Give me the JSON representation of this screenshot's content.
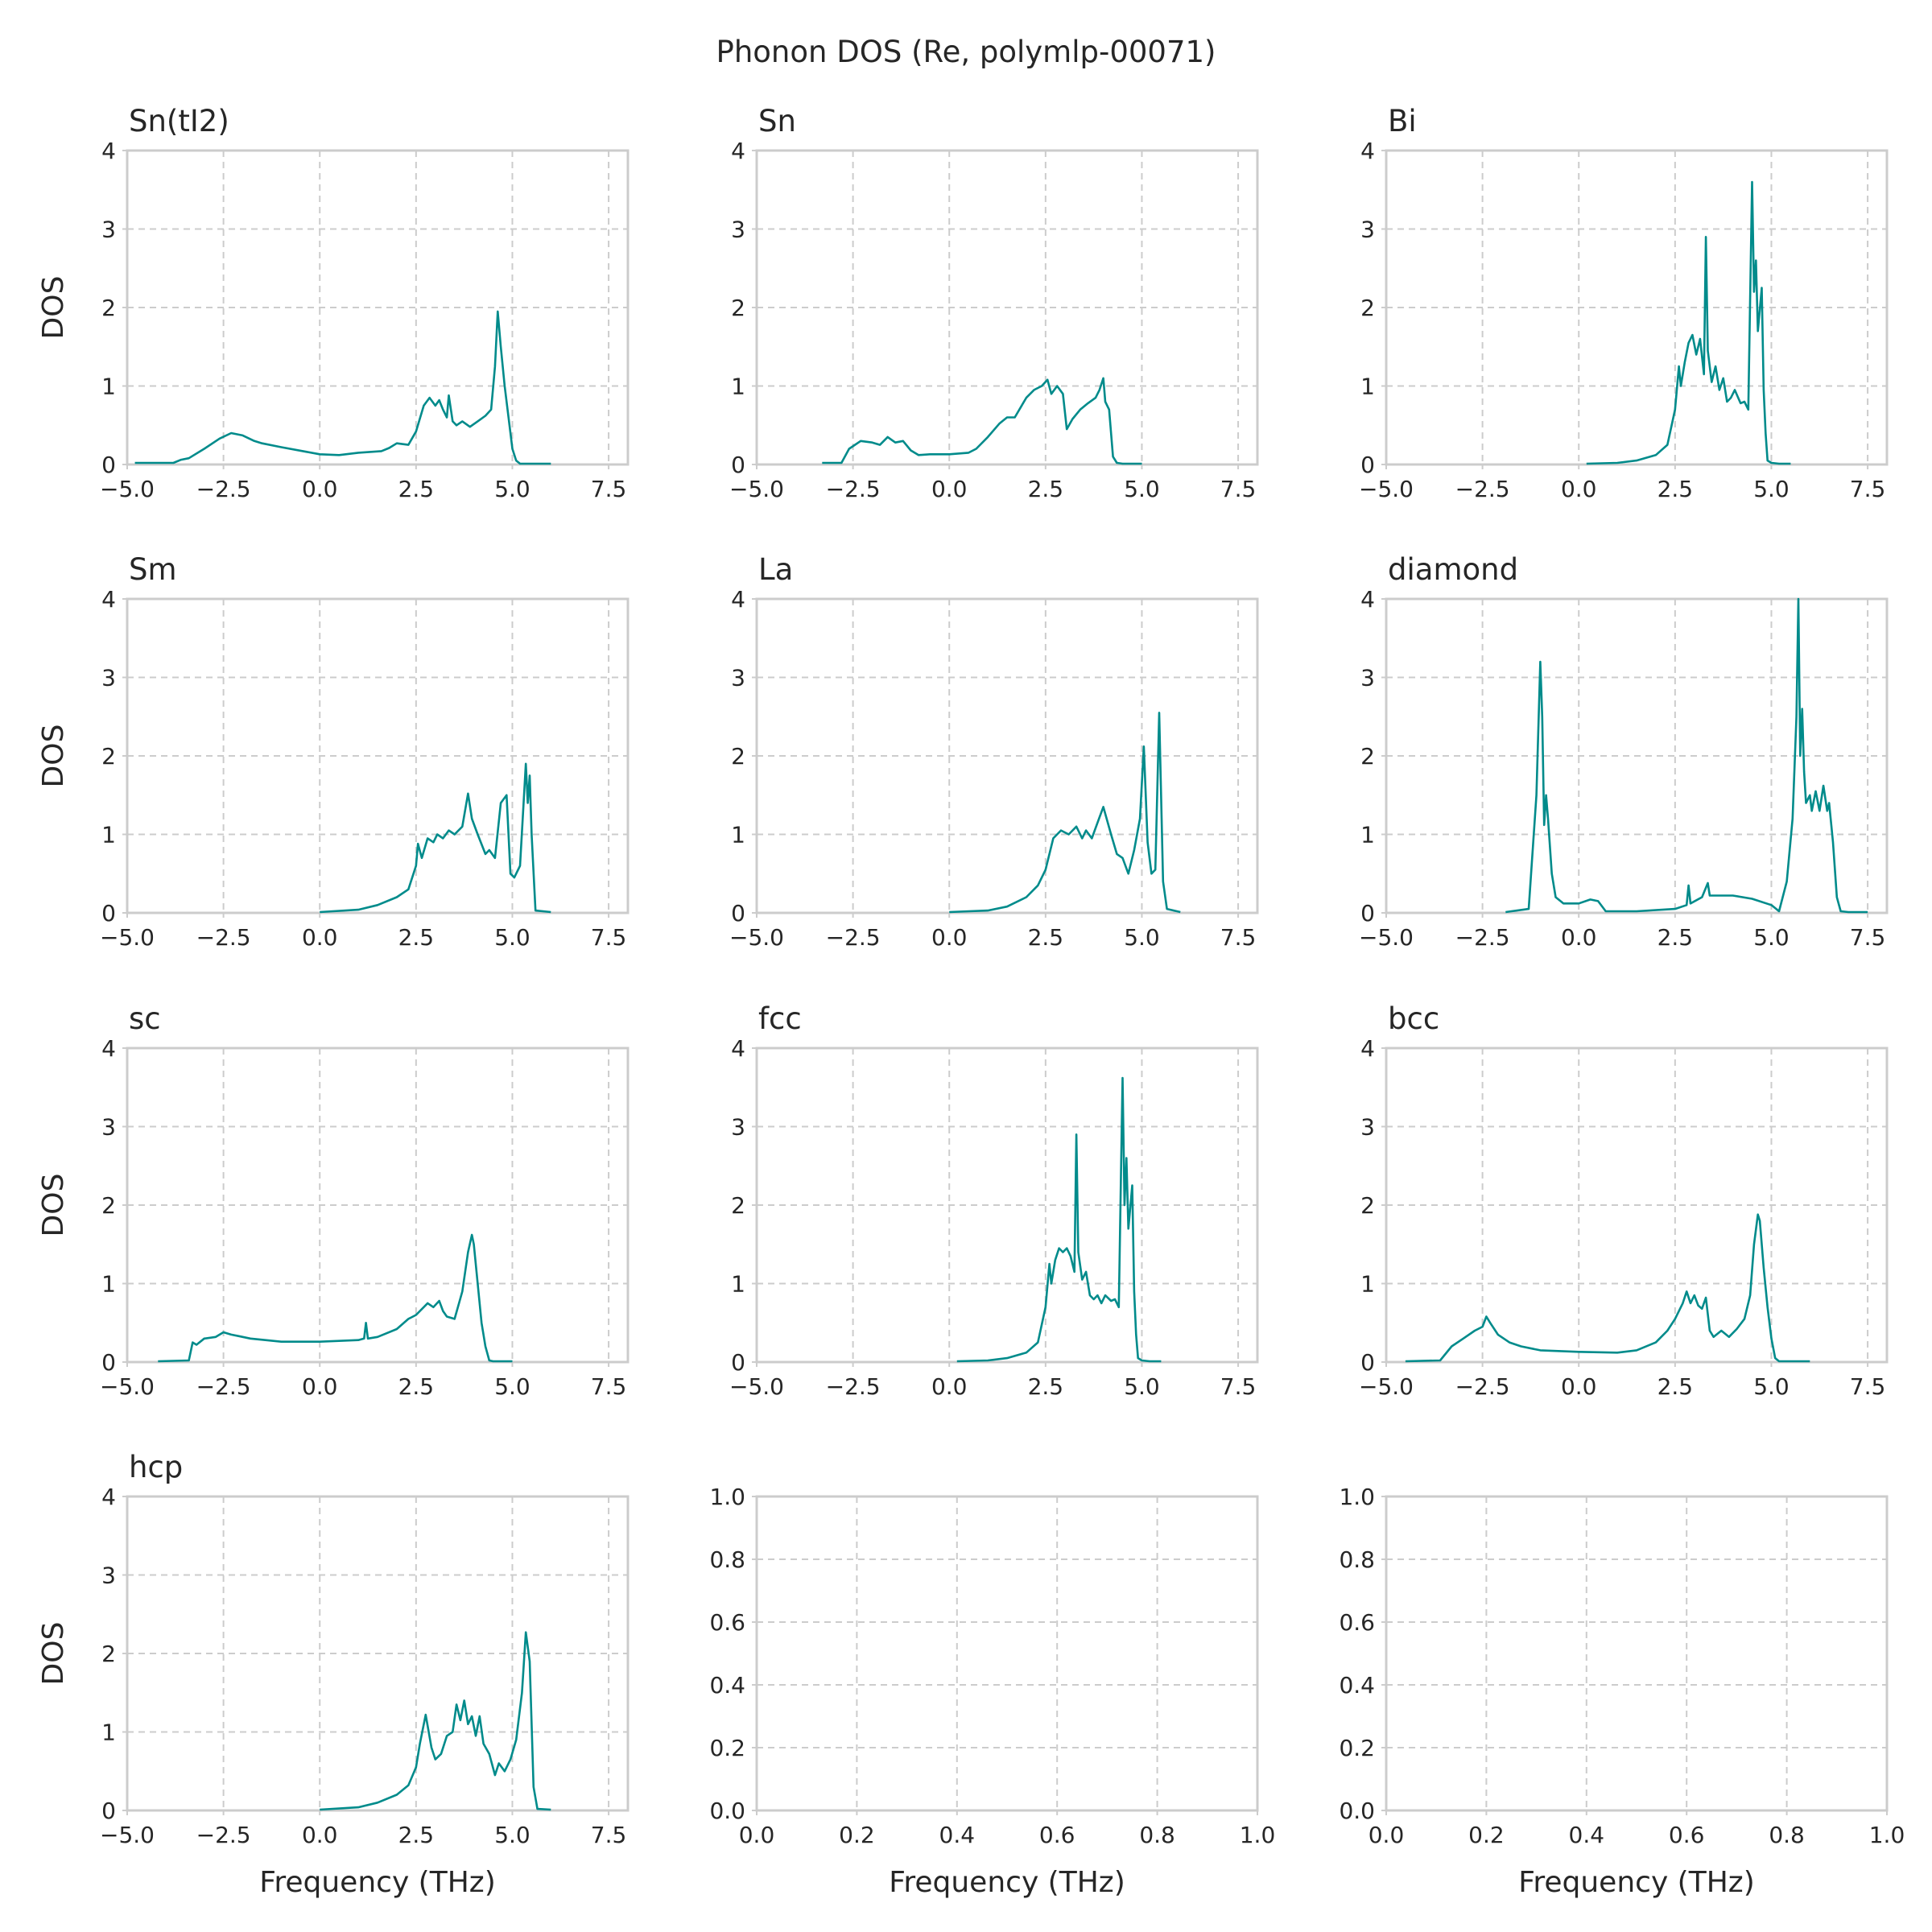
{
  "suptitle": "Phonon DOS (Re, polymlp-00071)",
  "style": {
    "line_color": "#008b8b",
    "grid_color": "#cccccc",
    "grid": "dashed"
  },
  "chart_data": [
    {
      "type": "line",
      "title": "Sn(tI2)",
      "xlabel": "",
      "ylabel": "DOS",
      "xlim": [
        -5,
        8
      ],
      "ylim": [
        0,
        4
      ],
      "xticks": [
        "−5.0",
        "−2.5",
        "0.0",
        "2.5",
        "5.0",
        "7.5"
      ],
      "yticks": [
        "0",
        "1",
        "2",
        "3",
        "4"
      ],
      "x": [
        -4.8,
        -3.8,
        -3.6,
        -3.4,
        -3.0,
        -2.6,
        -2.3,
        -2.0,
        -1.7,
        -1.5,
        -1.0,
        0,
        0.5,
        1.0,
        1.6,
        1.8,
        2.0,
        2.3,
        2.5,
        2.7,
        2.85,
        3.0,
        3.1,
        3.2,
        3.3,
        3.35,
        3.45,
        3.55,
        3.7,
        3.9,
        4.1,
        4.3,
        4.45,
        4.55,
        4.62,
        4.7,
        4.8,
        4.9,
        5.0,
        5.1,
        5.2,
        6.0
      ],
      "y": [
        0.02,
        0.02,
        0.06,
        0.08,
        0.2,
        0.33,
        0.4,
        0.37,
        0.3,
        0.27,
        0.22,
        0.13,
        0.12,
        0.15,
        0.17,
        0.21,
        0.27,
        0.25,
        0.42,
        0.75,
        0.85,
        0.75,
        0.82,
        0.7,
        0.6,
        0.88,
        0.55,
        0.5,
        0.55,
        0.48,
        0.55,
        0.62,
        0.7,
        1.25,
        1.95,
        1.5,
        1.0,
        0.6,
        0.2,
        0.05,
        0.01,
        0.01
      ]
    },
    {
      "type": "line",
      "title": "Sn",
      "xlabel": "",
      "ylabel": "",
      "xlim": [
        -5,
        8
      ],
      "ylim": [
        0,
        4
      ],
      "xticks": [
        "−5.0",
        "−2.5",
        "0.0",
        "2.5",
        "5.0",
        "7.5"
      ],
      "yticks": [
        "0",
        "1",
        "2",
        "3",
        "4"
      ],
      "x": [
        -3.3,
        -2.8,
        -2.6,
        -2.3,
        -2.0,
        -1.8,
        -1.6,
        -1.4,
        -1.2,
        -1.0,
        -0.8,
        -0.5,
        0,
        0.5,
        0.7,
        1.0,
        1.3,
        1.5,
        1.7,
        2.0,
        2.2,
        2.4,
        2.55,
        2.65,
        2.8,
        2.95,
        3.05,
        3.2,
        3.4,
        3.6,
        3.8,
        3.9,
        4.0,
        4.05,
        4.15,
        4.25,
        4.35,
        4.5,
        5.0
      ],
      "y": [
        0.02,
        0.02,
        0.2,
        0.3,
        0.28,
        0.25,
        0.35,
        0.28,
        0.3,
        0.18,
        0.12,
        0.13,
        0.13,
        0.15,
        0.2,
        0.35,
        0.52,
        0.6,
        0.6,
        0.85,
        0.95,
        1.0,
        1.08,
        0.9,
        1.0,
        0.9,
        0.45,
        0.58,
        0.7,
        0.78,
        0.85,
        0.95,
        1.1,
        0.8,
        0.7,
        0.1,
        0.02,
        0.01,
        0.01
      ]
    },
    {
      "type": "line",
      "title": "Bi",
      "xlabel": "",
      "ylabel": "",
      "xlim": [
        -5,
        8
      ],
      "ylim": [
        0,
        4
      ],
      "xticks": [
        "−5.0",
        "−2.5",
        "0.0",
        "2.5",
        "5.0",
        "7.5"
      ],
      "yticks": [
        "0",
        "1",
        "2",
        "3",
        "4"
      ],
      "x": [
        0.2,
        1.0,
        1.5,
        2.0,
        2.3,
        2.5,
        2.6,
        2.65,
        2.75,
        2.85,
        2.95,
        3.05,
        3.15,
        3.25,
        3.3,
        3.35,
        3.45,
        3.55,
        3.65,
        3.75,
        3.85,
        3.95,
        4.05,
        4.2,
        4.3,
        4.4,
        4.5,
        4.55,
        4.6,
        4.65,
        4.75,
        4.8,
        4.85,
        4.9,
        5.0,
        5.2,
        5.5
      ],
      "y": [
        0.01,
        0.02,
        0.05,
        0.12,
        0.25,
        0.7,
        1.25,
        1.0,
        1.3,
        1.55,
        1.65,
        1.4,
        1.6,
        1.15,
        2.9,
        1.45,
        1.05,
        1.25,
        0.95,
        1.1,
        0.8,
        0.85,
        0.95,
        0.78,
        0.8,
        0.7,
        3.6,
        2.2,
        2.6,
        1.7,
        2.25,
        0.95,
        0.4,
        0.05,
        0.02,
        0.01,
        0.01
      ]
    },
    {
      "type": "line",
      "title": "Sm",
      "xlabel": "",
      "ylabel": "DOS",
      "xlim": [
        -5,
        8
      ],
      "ylim": [
        0,
        4
      ],
      "xticks": [
        "−5.0",
        "−2.5",
        "0.0",
        "2.5",
        "5.0",
        "7.5"
      ],
      "yticks": [
        "0",
        "1",
        "2",
        "3",
        "4"
      ],
      "x": [
        0.0,
        1.0,
        1.5,
        2.0,
        2.3,
        2.5,
        2.55,
        2.65,
        2.8,
        2.95,
        3.05,
        3.2,
        3.35,
        3.5,
        3.7,
        3.85,
        3.95,
        4.1,
        4.3,
        4.4,
        4.55,
        4.7,
        4.85,
        4.95,
        5.05,
        5.2,
        5.35,
        5.4,
        5.45,
        5.5,
        5.6,
        6.0
      ],
      "y": [
        0.01,
        0.04,
        0.1,
        0.2,
        0.3,
        0.6,
        0.88,
        0.7,
        0.95,
        0.9,
        1.0,
        0.95,
        1.05,
        1.0,
        1.1,
        1.52,
        1.2,
        1.0,
        0.75,
        0.8,
        0.7,
        1.4,
        1.5,
        0.5,
        0.45,
        0.6,
        1.9,
        1.4,
        1.75,
        1.0,
        0.03,
        0.01
      ]
    },
    {
      "type": "line",
      "title": "La",
      "xlabel": "",
      "ylabel": "",
      "xlim": [
        -5,
        8
      ],
      "ylim": [
        0,
        4
      ],
      "xticks": [
        "−5.0",
        "−2.5",
        "0.0",
        "2.5",
        "5.0",
        "7.5"
      ],
      "yticks": [
        "0",
        "1",
        "2",
        "3",
        "4"
      ],
      "x": [
        0.0,
        1.0,
        1.5,
        2.0,
        2.3,
        2.5,
        2.7,
        2.9,
        3.1,
        3.3,
        3.45,
        3.55,
        3.7,
        3.85,
        4.0,
        4.2,
        4.35,
        4.5,
        4.65,
        4.8,
        4.95,
        5.05,
        5.15,
        5.25,
        5.35,
        5.45,
        5.55,
        5.65,
        6.0
      ],
      "y": [
        0.01,
        0.03,
        0.08,
        0.2,
        0.35,
        0.55,
        0.95,
        1.05,
        1.0,
        1.1,
        0.95,
        1.05,
        0.95,
        1.15,
        1.35,
        1.0,
        0.75,
        0.7,
        0.5,
        0.8,
        1.2,
        2.12,
        0.9,
        0.5,
        0.55,
        2.55,
        0.4,
        0.05,
        0.01
      ]
    },
    {
      "type": "line",
      "title": "diamond",
      "xlabel": "",
      "ylabel": "",
      "xlim": [
        -5,
        8
      ],
      "ylim": [
        0,
        4
      ],
      "xticks": [
        "−5.0",
        "−2.5",
        "0.0",
        "2.5",
        "5.0",
        "7.5"
      ],
      "yticks": [
        "0",
        "1",
        "2",
        "3",
        "4"
      ],
      "x": [
        -1.9,
        -1.3,
        -1.1,
        -1.0,
        -0.95,
        -0.9,
        -0.85,
        -0.8,
        -0.7,
        -0.6,
        -0.4,
        0,
        0.3,
        0.5,
        0.7,
        0.8,
        1.5,
        2.5,
        2.8,
        2.85,
        2.9,
        3.2,
        3.35,
        3.4,
        3.5,
        4.0,
        4.5,
        5.0,
        5.2,
        5.4,
        5.55,
        5.65,
        5.7,
        5.75,
        5.8,
        5.85,
        5.9,
        6.0,
        6.05,
        6.15,
        6.25,
        6.35,
        6.45,
        6.5,
        6.6,
        6.7,
        6.8,
        7.0,
        7.5
      ],
      "y": [
        0.01,
        0.05,
        1.5,
        3.2,
        2.5,
        1.12,
        1.5,
        1.2,
        0.5,
        0.2,
        0.12,
        0.12,
        0.17,
        0.15,
        0.02,
        0.02,
        0.02,
        0.05,
        0.1,
        0.35,
        0.12,
        0.2,
        0.38,
        0.22,
        0.22,
        0.22,
        0.18,
        0.1,
        0.02,
        0.4,
        1.2,
        2.5,
        4.0,
        2.0,
        2.6,
        1.8,
        1.4,
        1.5,
        1.3,
        1.55,
        1.3,
        1.62,
        1.3,
        1.4,
        0.9,
        0.2,
        0.02,
        0.01,
        0.01
      ]
    },
    {
      "type": "line",
      "title": "sc",
      "xlabel": "",
      "ylabel": "DOS",
      "xlim": [
        -5,
        8
      ],
      "ylim": [
        0,
        4
      ],
      "xticks": [
        "−5.0",
        "−2.5",
        "0.0",
        "2.5",
        "5.0",
        "7.5"
      ],
      "yticks": [
        "0",
        "1",
        "2",
        "3",
        "4"
      ],
      "x": [
        -4.2,
        -3.4,
        -3.3,
        -3.2,
        -3.0,
        -2.7,
        -2.5,
        -2.3,
        -2.1,
        -1.8,
        -1.0,
        0,
        1.0,
        1.15,
        1.2,
        1.25,
        1.5,
        2.0,
        2.3,
        2.5,
        2.8,
        2.95,
        3.1,
        3.2,
        3.3,
        3.5,
        3.7,
        3.85,
        3.95,
        4.0,
        4.1,
        4.2,
        4.3,
        4.4,
        4.5,
        5.0
      ],
      "y": [
        0.01,
        0.02,
        0.25,
        0.22,
        0.3,
        0.32,
        0.38,
        0.35,
        0.33,
        0.3,
        0.26,
        0.26,
        0.28,
        0.3,
        0.5,
        0.3,
        0.32,
        0.42,
        0.55,
        0.6,
        0.75,
        0.7,
        0.78,
        0.65,
        0.58,
        0.55,
        0.9,
        1.4,
        1.62,
        1.5,
        1.0,
        0.5,
        0.2,
        0.02,
        0.01,
        0.01
      ]
    },
    {
      "type": "line",
      "title": "fcc",
      "xlabel": "",
      "ylabel": "",
      "xlim": [
        -5,
        8
      ],
      "ylim": [
        0,
        4
      ],
      "xticks": [
        "−5.0",
        "−2.5",
        "0.0",
        "2.5",
        "5.0",
        "7.5"
      ],
      "yticks": [
        "0",
        "1",
        "2",
        "3",
        "4"
      ],
      "x": [
        0.2,
        1.0,
        1.5,
        2.0,
        2.3,
        2.5,
        2.6,
        2.65,
        2.75,
        2.85,
        2.95,
        3.05,
        3.15,
        3.25,
        3.3,
        3.35,
        3.45,
        3.55,
        3.65,
        3.75,
        3.85,
        3.95,
        4.05,
        4.2,
        4.3,
        4.4,
        4.5,
        4.55,
        4.6,
        4.65,
        4.75,
        4.8,
        4.85,
        4.9,
        5.0,
        5.2,
        5.5
      ],
      "y": [
        0.01,
        0.02,
        0.05,
        0.12,
        0.25,
        0.7,
        1.25,
        1.0,
        1.3,
        1.45,
        1.4,
        1.45,
        1.35,
        1.15,
        2.9,
        1.4,
        1.05,
        1.15,
        0.85,
        0.8,
        0.85,
        0.75,
        0.85,
        0.78,
        0.8,
        0.7,
        3.62,
        2.0,
        2.6,
        1.7,
        2.25,
        0.9,
        0.35,
        0.05,
        0.02,
        0.01,
        0.01
      ]
    },
    {
      "type": "line",
      "title": "bcc",
      "xlabel": "",
      "ylabel": "",
      "xlim": [
        -5,
        8
      ],
      "ylim": [
        0,
        4
      ],
      "xticks": [
        "−5.0",
        "−2.5",
        "0.0",
        "2.5",
        "5.0",
        "7.5"
      ],
      "yticks": [
        "0",
        "1",
        "2",
        "3",
        "4"
      ],
      "x": [
        -4.5,
        -3.6,
        -3.3,
        -3.0,
        -2.7,
        -2.5,
        -2.4,
        -2.3,
        -2.1,
        -1.8,
        -1.5,
        -1.0,
        0,
        1.0,
        1.5,
        2.0,
        2.3,
        2.5,
        2.7,
        2.8,
        2.9,
        3.0,
        3.1,
        3.2,
        3.3,
        3.4,
        3.5,
        3.7,
        3.9,
        4.1,
        4.3,
        4.45,
        4.55,
        4.65,
        4.7,
        4.8,
        4.9,
        5.0,
        5.1,
        5.2,
        6.0
      ],
      "y": [
        0.01,
        0.02,
        0.2,
        0.3,
        0.4,
        0.45,
        0.58,
        0.5,
        0.35,
        0.25,
        0.2,
        0.15,
        0.13,
        0.12,
        0.15,
        0.25,
        0.4,
        0.55,
        0.75,
        0.9,
        0.75,
        0.85,
        0.72,
        0.68,
        0.82,
        0.4,
        0.32,
        0.4,
        0.32,
        0.42,
        0.55,
        0.85,
        1.5,
        1.88,
        1.8,
        1.2,
        0.7,
        0.3,
        0.05,
        0.01,
        0.01
      ]
    },
    {
      "type": "line",
      "title": "hcp",
      "xlabel": "Frequency (THz)",
      "ylabel": "DOS",
      "xlim": [
        -5,
        8
      ],
      "ylim": [
        0,
        4
      ],
      "xticks": [
        "−5.0",
        "−2.5",
        "0.0",
        "2.5",
        "5.0",
        "7.5"
      ],
      "yticks": [
        "0",
        "1",
        "2",
        "3",
        "4"
      ],
      "x": [
        0.0,
        1.0,
        1.5,
        2.0,
        2.3,
        2.5,
        2.6,
        2.75,
        2.9,
        3.0,
        3.15,
        3.3,
        3.45,
        3.55,
        3.65,
        3.75,
        3.85,
        3.95,
        4.05,
        4.15,
        4.25,
        4.4,
        4.55,
        4.65,
        4.8,
        4.95,
        5.1,
        5.25,
        5.35,
        5.45,
        5.55,
        5.65,
        6.0
      ],
      "y": [
        0.01,
        0.04,
        0.1,
        0.2,
        0.32,
        0.55,
        0.85,
        1.22,
        0.8,
        0.65,
        0.72,
        0.95,
        1.0,
        1.35,
        1.15,
        1.4,
        1.1,
        1.2,
        0.95,
        1.2,
        0.85,
        0.72,
        0.45,
        0.6,
        0.5,
        0.65,
        0.9,
        1.5,
        2.27,
        1.9,
        0.3,
        0.02,
        0.01
      ]
    },
    {
      "type": "line",
      "title": "",
      "xlabel": "Frequency (THz)",
      "ylabel": "",
      "xlim": [
        0,
        1
      ],
      "ylim": [
        0,
        1
      ],
      "xticks": [
        "0.0",
        "0.2",
        "0.4",
        "0.6",
        "0.8",
        "1.0"
      ],
      "yticks": [
        "0.0",
        "0.2",
        "0.4",
        "0.6",
        "0.8",
        "1.0"
      ],
      "x": [],
      "y": []
    },
    {
      "type": "line",
      "title": "",
      "xlabel": "Frequency (THz)",
      "ylabel": "",
      "xlim": [
        0,
        1
      ],
      "ylim": [
        0,
        1
      ],
      "xticks": [
        "0.0",
        "0.2",
        "0.4",
        "0.6",
        "0.8",
        "1.0"
      ],
      "yticks": [
        "0.0",
        "0.2",
        "0.4",
        "0.6",
        "0.8",
        "1.0"
      ],
      "x": [],
      "y": []
    }
  ]
}
